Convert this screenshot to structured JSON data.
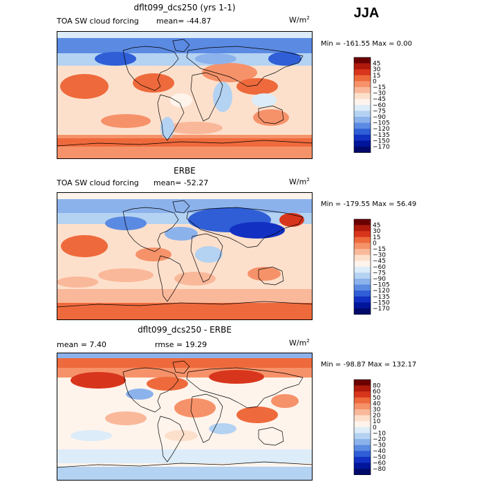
{
  "season": "JJA",
  "units_base": "W/m",
  "units_exp": "2",
  "panels": [
    {
      "title": "dflt099_dcs250 (yrs 1-1)",
      "variable": "TOA SW cloud forcing",
      "stat1": "mean= -44.87",
      "stat2": "",
      "min_max": "Min = -161.55 Max =    0.00"
    },
    {
      "title": "ERBE",
      "variable": "TOA SW cloud forcing",
      "stat1": "mean= -52.27",
      "stat2": "",
      "min_max": "Min = -179.55 Max =  56.49"
    },
    {
      "title": "dflt099_dcs250 - ERBE",
      "variable": "",
      "stat1": "mean =    7.40",
      "stat2": "rmse =   19.29",
      "min_max": "Min = -98.87 Max = 132.17"
    }
  ],
  "chart_data": [
    {
      "type": "heatmap",
      "title": "dflt099_dcs250 (yrs 1-1)",
      "legend_position": "right",
      "colorbar": {
        "levels": [
          "45",
          "30",
          "15",
          "0",
          "−15",
          "−30",
          "−45",
          "−60",
          "−75",
          "−90",
          "−105",
          "−120",
          "−135",
          "−150",
          "−170"
        ],
        "colors": [
          "#6b0000",
          "#b01a0c",
          "#d8361c",
          "#ee6a3c",
          "#f6926a",
          "#fab89a",
          "#fde0cc",
          "#fff4ec",
          "#dcecf8",
          "#b4d2f2",
          "#8cb2ec",
          "#5b8ae2",
          "#2f5ed6",
          "#1230c2",
          "#00159a",
          "#000a6a"
        ]
      },
      "mean": -44.87,
      "min": -161.55,
      "max": 0.0
    },
    {
      "type": "heatmap",
      "title": "ERBE",
      "legend_position": "right",
      "colorbar": {
        "levels": [
          "45",
          "30",
          "15",
          "0",
          "−15",
          "−30",
          "−45",
          "−60",
          "−75",
          "−90",
          "−105",
          "−120",
          "−135",
          "−150",
          "−170"
        ],
        "colors": [
          "#6b0000",
          "#b01a0c",
          "#d8361c",
          "#ee6a3c",
          "#f6926a",
          "#fab89a",
          "#fde0cc",
          "#fff4ec",
          "#dcecf8",
          "#b4d2f2",
          "#8cb2ec",
          "#5b8ae2",
          "#2f5ed6",
          "#1230c2",
          "#00159a",
          "#000a6a"
        ]
      },
      "mean": -52.27,
      "min": -179.55,
      "max": 56.49
    },
    {
      "type": "heatmap",
      "title": "dflt099_dcs250 - ERBE",
      "legend_position": "right",
      "colorbar": {
        "levels": [
          "80",
          "60",
          "50",
          "40",
          "30",
          "20",
          "10",
          "0",
          "−10",
          "−20",
          "−30",
          "−40",
          "−50",
          "−60",
          "−80"
        ],
        "colors": [
          "#6b0000",
          "#b01a0c",
          "#d8361c",
          "#ee6a3c",
          "#f6926a",
          "#fab89a",
          "#fde0cc",
          "#fff4ec",
          "#dcecf8",
          "#b4d2f2",
          "#8cb2ec",
          "#5b8ae2",
          "#2f5ed6",
          "#1230c2",
          "#00159a",
          "#000a6a"
        ]
      },
      "mean": 7.4,
      "rmse": 19.29,
      "min": -98.87,
      "max": 132.17
    }
  ]
}
